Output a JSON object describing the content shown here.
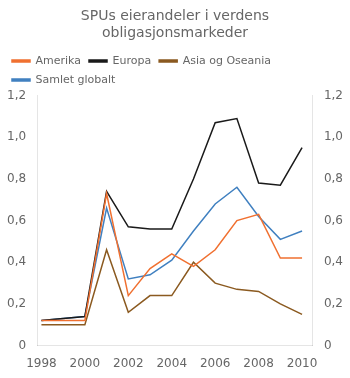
{
  "chart_data": {
    "type": "line",
    "title": "SPUs eierandeler i verdens\nobligasjonsmarkeder",
    "x": [
      1998,
      1999,
      2000,
      2001,
      2002,
      2003,
      2004,
      2005,
      2006,
      2007,
      2008,
      2009,
      2010
    ],
    "series": [
      {
        "name": "Amerika",
        "color": "#f07030",
        "values": [
          0.12,
          0.12,
          0.12,
          0.73,
          0.24,
          0.37,
          0.44,
          0.38,
          0.46,
          0.6,
          0.63,
          0.42,
          0.42
        ]
      },
      {
        "name": "Europa",
        "color": "#1a1a1a",
        "values": [
          0.12,
          0.13,
          0.14,
          0.74,
          0.57,
          0.56,
          0.56,
          0.8,
          1.07,
          1.09,
          0.78,
          0.77,
          0.95
        ]
      },
      {
        "name": "Asia og Oseania",
        "color": "#8b5a20",
        "values": [
          0.1,
          0.1,
          0.1,
          0.46,
          0.16,
          0.24,
          0.24,
          0.4,
          0.3,
          0.27,
          0.26,
          0.2,
          0.15
        ]
      },
      {
        "name": "Samlet globalt",
        "color": "#4080c0",
        "values": [
          0.12,
          0.13,
          0.14,
          0.66,
          0.32,
          0.34,
          0.41,
          0.55,
          0.68,
          0.76,
          0.62,
          0.51,
          0.55
        ]
      }
    ],
    "xlim": [
      1997.8,
      2010.5
    ],
    "xticks": [
      1998,
      2000,
      2002,
      2004,
      2006,
      2008,
      2010
    ],
    "ylim": [
      0,
      1.2
    ],
    "yticks": [
      0,
      {
        "value": 0.2,
        "label": "0,2"
      },
      {
        "value": 0.4,
        "label": "0,4"
      },
      {
        "value": 0.6,
        "label": "0,6"
      },
      {
        "value": 0.8,
        "label": "0,8"
      },
      {
        "value": 1.0,
        "label": "1,0"
      },
      {
        "value": 1.2,
        "label": "1,2"
      }
    ],
    "y2lim": [
      0,
      1.2
    ],
    "y2ticks": [
      0,
      {
        "value": 0.2,
        "label": "0,2"
      },
      {
        "value": 0.4,
        "label": "0,4"
      },
      {
        "value": 0.6,
        "label": "0,6"
      },
      {
        "value": 0.8,
        "label": "0,8"
      },
      {
        "value": 1.0,
        "label": "1,0"
      },
      {
        "value": 1.2,
        "label": "1,2"
      }
    ],
    "grid": false,
    "legend": "upper left"
  }
}
